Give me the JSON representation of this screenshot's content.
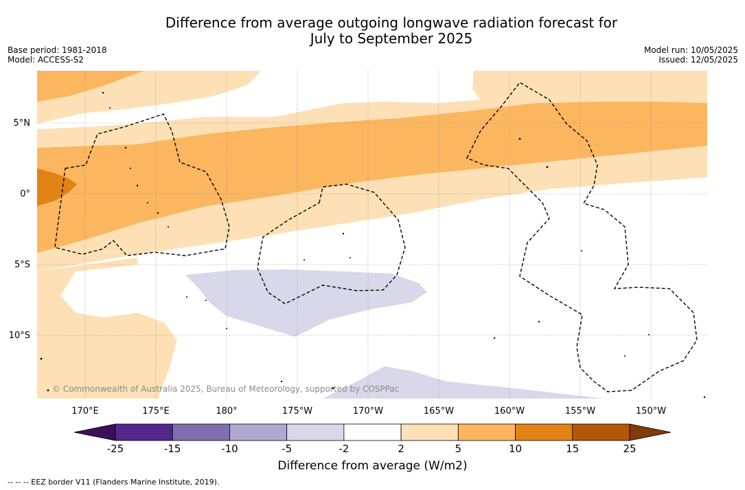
{
  "header": {
    "title_line1": "Difference from average outgoing longwave radiation forecast for",
    "title_line2": "July to September 2025",
    "base_period": "Base period: 1981-2018",
    "model": "Model: ACCESS-S2",
    "model_run": "Model run: 10/05/2025",
    "issued": "Issued: 12/05/2025"
  },
  "map": {
    "lat_labels": [
      "5°N",
      "0°",
      "5°S",
      "10°S"
    ],
    "lon_labels": [
      "170°E",
      "175°E",
      "180°",
      "175°W",
      "170°W",
      "165°W",
      "160°W",
      "155°W",
      "150°W"
    ],
    "copyright": "© Commonwealth of Australia 2025, Bureau of Meteorology, supported by COSPPac"
  },
  "colorbar": {
    "ticks": [
      "-25",
      "-15",
      "-10",
      "-5",
      "-2",
      "2",
      "5",
      "10",
      "15",
      "25"
    ],
    "colors": [
      "#3b0f5a",
      "#54278f",
      "#7f6faf",
      "#b0a8d2",
      "#d8d8ea",
      "#ffffff",
      "#fde0b5",
      "#fbb65f",
      "#e08214",
      "#b35806",
      "#7f3b08"
    ],
    "title": "Difference from average (W/m2)"
  },
  "footnote": "--  --  -- EEZ border V11 (Flanders Marine Institute, 2019)."
}
